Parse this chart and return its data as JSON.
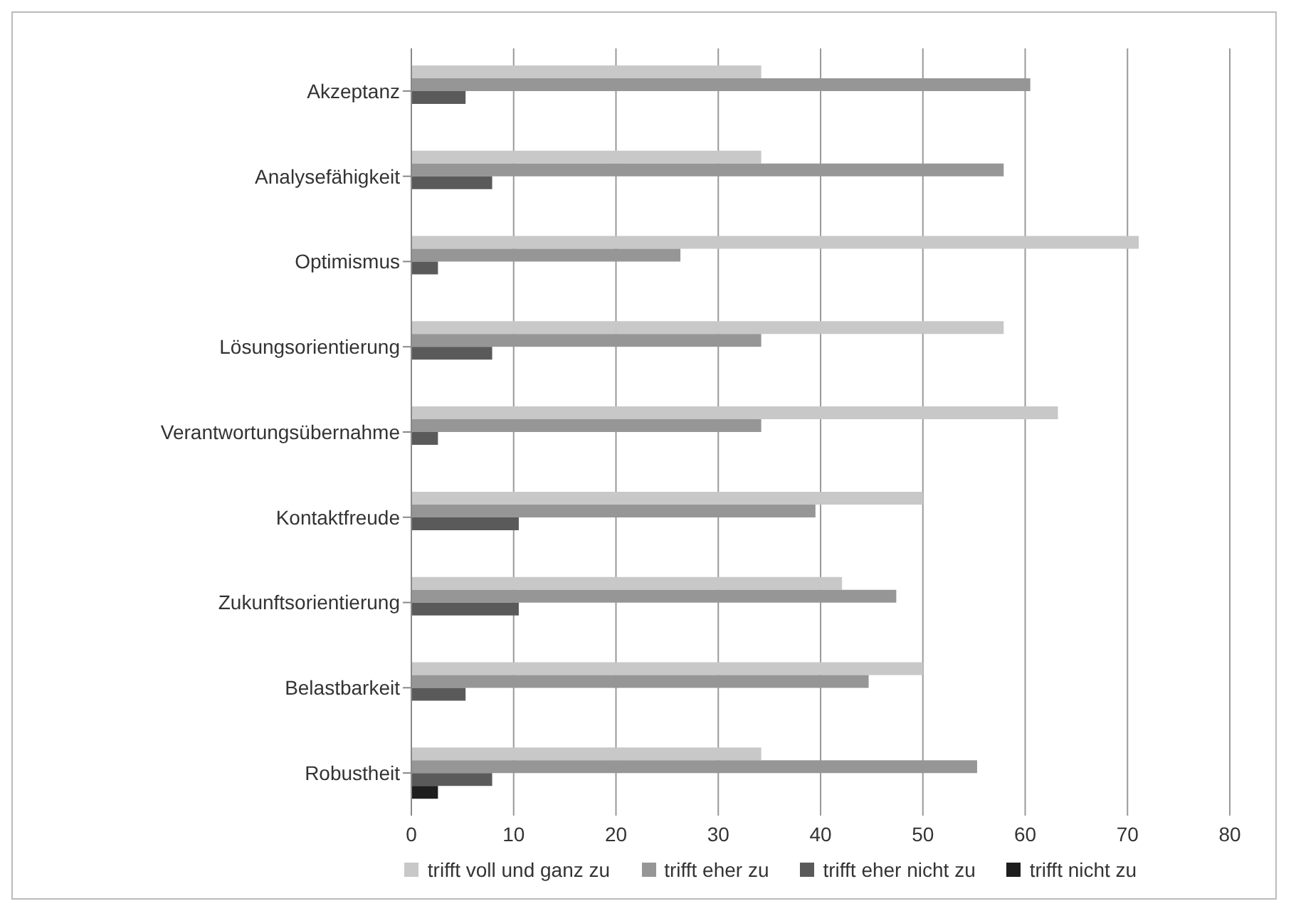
{
  "chart_data": {
    "type": "bar",
    "orientation": "horizontal",
    "categories": [
      "Akzeptanz",
      "Analysefähigkeit",
      "Optimismus",
      "Lösungsorientierung",
      "Verantwortungsübernahme",
      "Kontaktfreude",
      "Zukunftsorientierung",
      "Belastbarkeit",
      "Robustheit"
    ],
    "series": [
      {
        "name": "trifft voll und ganz zu",
        "color": "#c8c8c8",
        "values": [
          34.2,
          34.2,
          71.1,
          57.9,
          63.2,
          50,
          42.1,
          50,
          34.2
        ]
      },
      {
        "name": "trifft eher zu",
        "color": "#969696",
        "values": [
          60.5,
          57.9,
          26.3,
          34.2,
          34.2,
          39.5,
          47.4,
          44.7,
          55.3
        ]
      },
      {
        "name": "trifft eher nicht zu",
        "color": "#5a5a5a",
        "values": [
          5.3,
          7.9,
          2.6,
          7.9,
          2.6,
          10.5,
          10.5,
          5.3,
          7.9
        ]
      },
      {
        "name": "trifft nicht zu",
        "color": "#1e1e1e",
        "values": [
          null,
          null,
          null,
          null,
          null,
          null,
          null,
          null,
          2.6
        ]
      }
    ],
    "xlim": [
      0,
      80
    ],
    "xticks": [
      0,
      10,
      20,
      30,
      40,
      50,
      60,
      70,
      80
    ],
    "grid": "x",
    "legend": "bottom"
  }
}
